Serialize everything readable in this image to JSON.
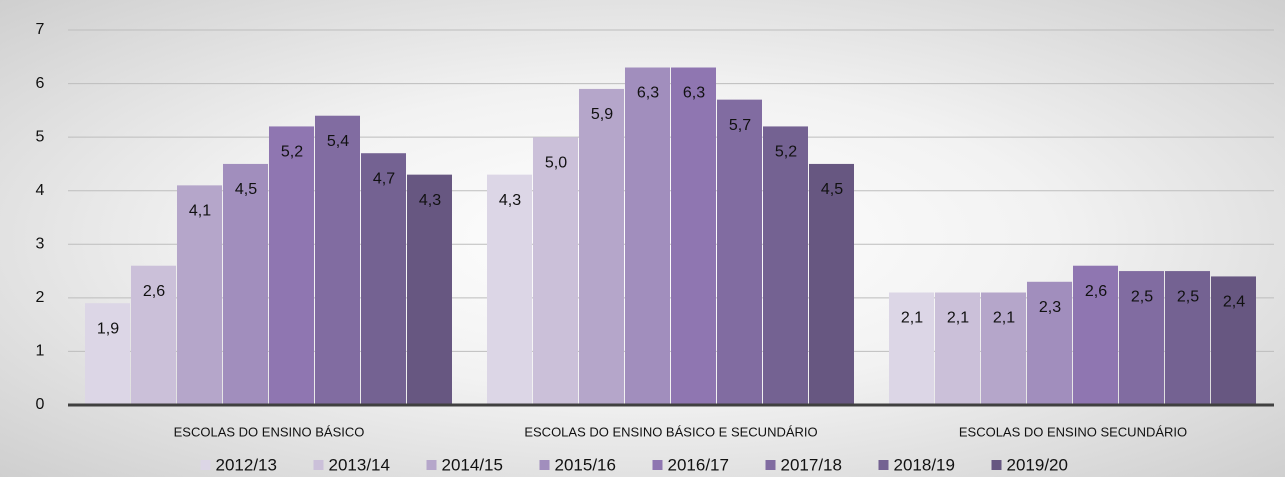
{
  "chart_data": {
    "type": "bar",
    "categories": [
      "ESCOLAS DO ENSINO BÁSICO",
      "ESCOLAS DO ENSINO BÁSICO E SECUNDÁRIO",
      "ESCOLAS DO ENSINO SECUNDÁRIO"
    ],
    "series": [
      {
        "name": "2012/13",
        "color": "#dcd6e6",
        "values": [
          1.9,
          4.3,
          2.1
        ],
        "value_labels": [
          "1,9",
          "4,3",
          "2,1"
        ]
      },
      {
        "name": "2013/14",
        "color": "#cbc0d9",
        "values": [
          2.6,
          5.0,
          2.1
        ],
        "value_labels": [
          "2,6",
          "5,0",
          "2,1"
        ]
      },
      {
        "name": "2014/15",
        "color": "#b5a6ca",
        "values": [
          4.1,
          5.9,
          2.1
        ],
        "value_labels": [
          "4,1",
          "5,9",
          "2,1"
        ]
      },
      {
        "name": "2015/16",
        "color": "#a18ebd",
        "values": [
          4.5,
          6.3,
          2.3
        ],
        "value_labels": [
          "4,5",
          "6,3",
          "2,3"
        ]
      },
      {
        "name": "2016/17",
        "color": "#8f76b1",
        "values": [
          5.2,
          6.3,
          2.6
        ],
        "value_labels": [
          "5,2",
          "6,3",
          "2,6"
        ]
      },
      {
        "name": "2017/18",
        "color": "#816ca1",
        "values": [
          5.4,
          5.7,
          2.5
        ],
        "value_labels": [
          "5,4",
          "5,7",
          "2,5"
        ]
      },
      {
        "name": "2018/19",
        "color": "#746292",
        "values": [
          4.7,
          5.2,
          2.5
        ],
        "value_labels": [
          "4,7",
          "5,2",
          "2,5"
        ]
      },
      {
        "name": "2019/20",
        "color": "#675781",
        "values": [
          4.3,
          4.5,
          2.4
        ],
        "value_labels": [
          "4,3",
          "4,5",
          "2,4"
        ]
      }
    ],
    "ylim": [
      0,
      7
    ],
    "yticks": [
      0,
      1,
      2,
      3,
      4,
      5,
      6,
      7
    ],
    "grid": true,
    "legend": "bottom"
  }
}
